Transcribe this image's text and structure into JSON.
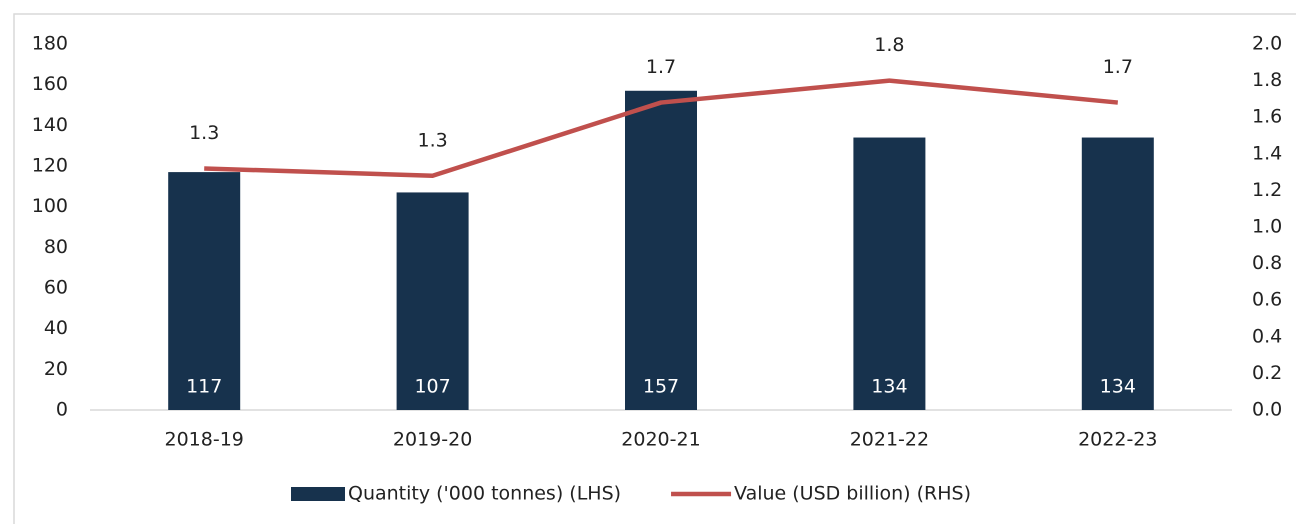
{
  "chart_data": {
    "type": "bar",
    "categories": [
      "2018-19",
      "2019-20",
      "2020-21",
      "2021-22",
      "2022-23"
    ],
    "series": [
      {
        "name": "Quantity ('000 tonnes) (LHS)",
        "type": "bar",
        "color": "#17324d",
        "values": [
          117,
          107,
          157,
          134,
          134
        ]
      },
      {
        "name": "Value (USD billion) (RHS)",
        "type": "line",
        "axis": "y2",
        "color": "#c0504d",
        "values": [
          1.32,
          1.28,
          1.68,
          1.8,
          1.68
        ],
        "value_labels": [
          "1.3",
          "1.3",
          "1.7",
          "1.8",
          "1.7"
        ]
      }
    ],
    "ylim": [
      0,
      180
    ],
    "yticks": [
      0,
      20,
      40,
      60,
      80,
      100,
      120,
      140,
      160,
      180
    ],
    "y2lim": [
      0,
      2
    ],
    "y2ticks": [
      {
        "value": 0,
        "label": "0.0"
      },
      0.2,
      0.4,
      0.6,
      0.8,
      {
        "value": 1,
        "label": "1.0"
      },
      1.2,
      1.4,
      1.6,
      1.8,
      {
        "value": 2,
        "label": "2.0"
      }
    ],
    "legend": "bottom"
  }
}
